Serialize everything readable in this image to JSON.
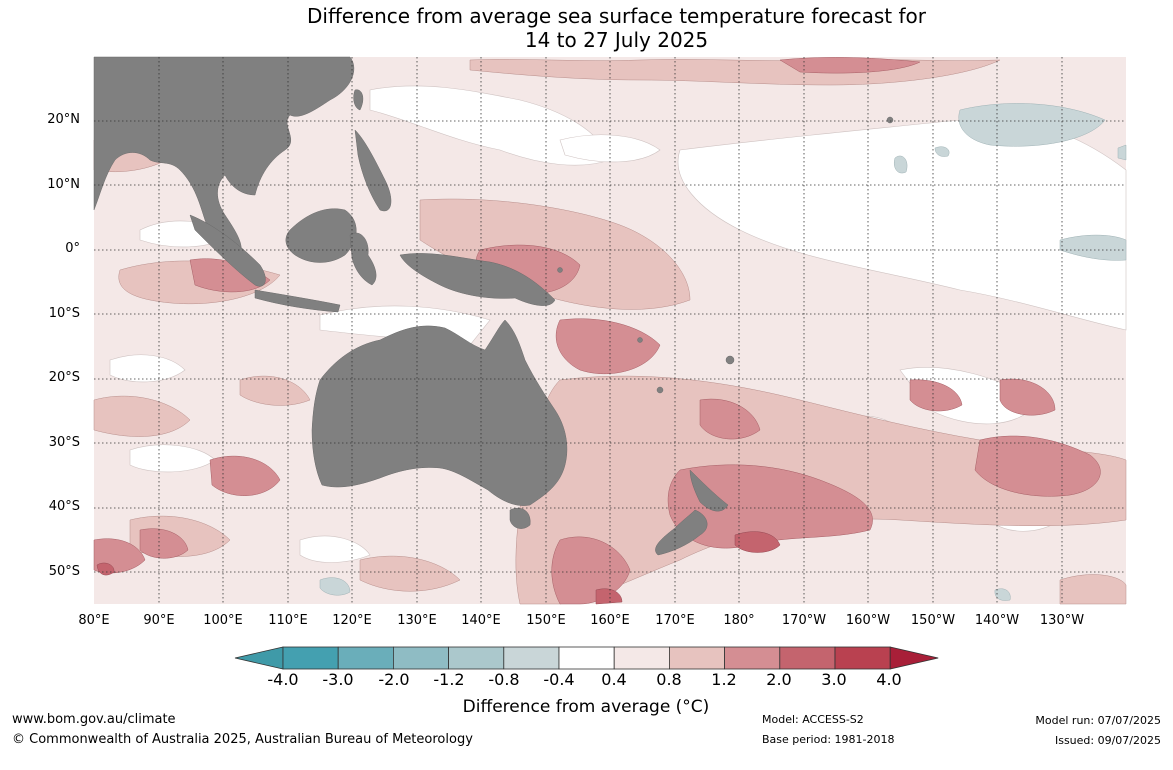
{
  "title": {
    "line1": "Difference from average sea surface temperature forecast for",
    "line2": "14 to 27 July 2025"
  },
  "map": {
    "lat_labels": [
      "20°N",
      "10°N",
      "0°",
      "10°S",
      "20°S",
      "30°S",
      "40°S",
      "50°S"
    ],
    "lon_labels": [
      "80°E",
      "90°E",
      "100°E",
      "110°E",
      "120°E",
      "130°E",
      "140°E",
      "150°E",
      "160°E",
      "170°E",
      "180°",
      "170°W",
      "160°W",
      "150°W",
      "140°W",
      "130°W"
    ],
    "land_color": "#808080",
    "gridlines": "dotted"
  },
  "colorbar": {
    "ticks": [
      "-4.0",
      "-3.0",
      "-2.0",
      "-1.2",
      "-0.8",
      "-0.4",
      "0.4",
      "0.8",
      "1.2",
      "2.0",
      "3.0",
      "4.0"
    ],
    "colors": [
      "#3f9aa8",
      "#44a0b0",
      "#6aaeba",
      "#8fbcc4",
      "#abc8cc",
      "#c9d6d8",
      "#ffffff",
      "#f4e8e7",
      "#e7c3bf",
      "#d48e93",
      "#c4646e",
      "#b94150",
      "#a81f38"
    ],
    "label": "Difference from average (°C)"
  },
  "footer": {
    "website": "www.bom.gov.au/climate",
    "copyright": "© Commonwealth of Australia 2025, Australian Bureau of Meteorology",
    "model": "Model: ACCESS-S2",
    "base_period": "Base period: 1981-2018",
    "model_run": "Model run: 07/07/2025",
    "issued": "Issued: 09/07/2025"
  }
}
